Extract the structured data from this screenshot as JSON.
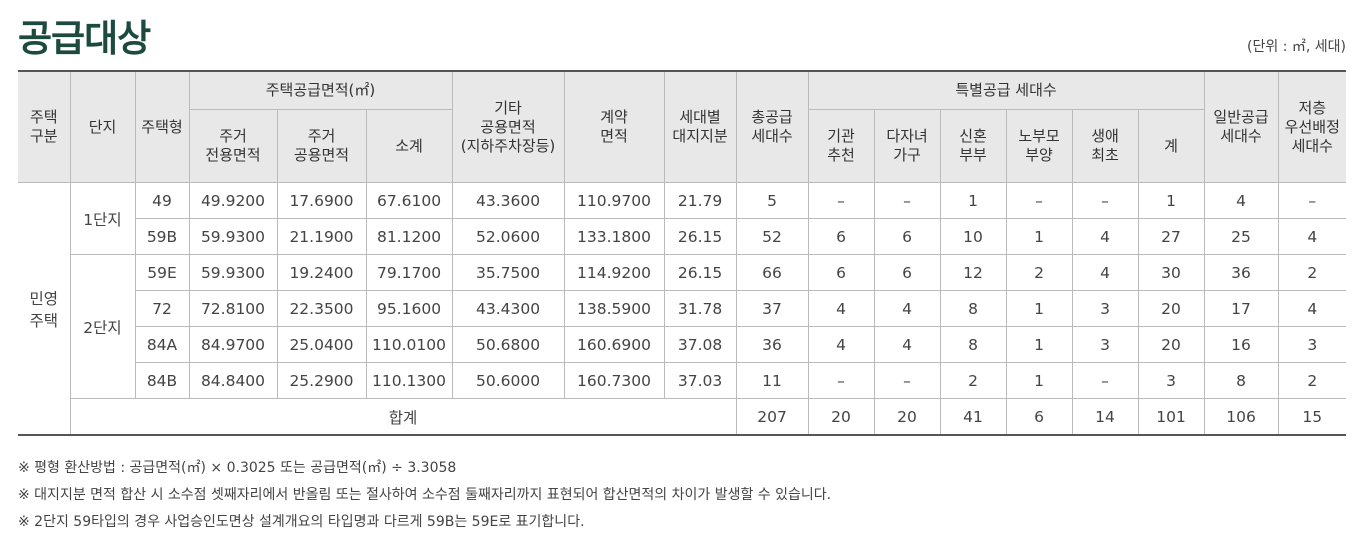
{
  "title": "공급대상",
  "unit": "(단위 : ㎡, 세대)",
  "headers": {
    "house_type_group": "주택\n구분",
    "complex": "단지",
    "house_type": "주택형",
    "supply_area": "주택공급면적(㎡)",
    "residential_private": "주거\n전용면적",
    "residential_common": "주거\n공용면적",
    "subtotal": "소계",
    "other_common": "기타\n공용면적\n(지하주차장등)",
    "contract_area": "계약\n면적",
    "land_share": "세대별\n대지지분",
    "total_supply": "총공급\n세대수",
    "special_supply": "특별공급 세대수",
    "institution": "기관\n추천",
    "multi_child": "다자녀\n가구",
    "newlywed": "신혼\n부부",
    "elderly": "노부모\n부양",
    "first_time": "생애\n최초",
    "special_total": "계",
    "general_supply": "일반공급\n세대수",
    "low_floor": "저층\n우선배정\n세대수"
  },
  "group_label": "민영\n주택",
  "complex1": "1단지",
  "complex2": "2단지",
  "rows": [
    [
      "49",
      "49.9200",
      "17.6900",
      "67.6100",
      "43.3600",
      "110.9700",
      "21.79",
      "5",
      "–",
      "–",
      "1",
      "–",
      "–",
      "1",
      "4",
      "–"
    ],
    [
      "59B",
      "59.9300",
      "21.1900",
      "81.1200",
      "52.0600",
      "133.1800",
      "26.15",
      "52",
      "6",
      "6",
      "10",
      "1",
      "4",
      "27",
      "25",
      "4"
    ],
    [
      "59E",
      "59.9300",
      "19.2400",
      "79.1700",
      "35.7500",
      "114.9200",
      "26.15",
      "66",
      "6",
      "6",
      "12",
      "2",
      "4",
      "30",
      "36",
      "2"
    ],
    [
      "72",
      "72.8100",
      "22.3500",
      "95.1600",
      "43.4300",
      "138.5900",
      "31.78",
      "37",
      "4",
      "4",
      "8",
      "1",
      "3",
      "20",
      "17",
      "4"
    ],
    [
      "84A",
      "84.9700",
      "25.0400",
      "110.0100",
      "50.6800",
      "160.6900",
      "37.08",
      "36",
      "4",
      "4",
      "8",
      "1",
      "3",
      "20",
      "16",
      "3"
    ],
    [
      "84B",
      "84.8400",
      "25.2900",
      "110.1300",
      "50.6000",
      "160.7300",
      "37.03",
      "11",
      "–",
      "–",
      "2",
      "1",
      "–",
      "3",
      "8",
      "2"
    ]
  ],
  "total": {
    "label": "합계",
    "values": [
      "207",
      "20",
      "20",
      "41",
      "6",
      "14",
      "101",
      "106",
      "15"
    ]
  },
  "notes": [
    "※ 평형 환산방법 : 공급면적(㎡) × 0.3025 또는 공급면적(㎡) ÷ 3.3058",
    "※ 대지지분 면적 합산 시 소수점 셋째자리에서 반올림 또는 절사하여 소수점 둘째자리까지 표현되어 합산면적의 차이가 발생할 수 있습니다.",
    "※ 2단지 59타입의 경우 사업승인도면상 설계개요의 타입명과 다르게 59B는 59E로 표기합니다."
  ]
}
